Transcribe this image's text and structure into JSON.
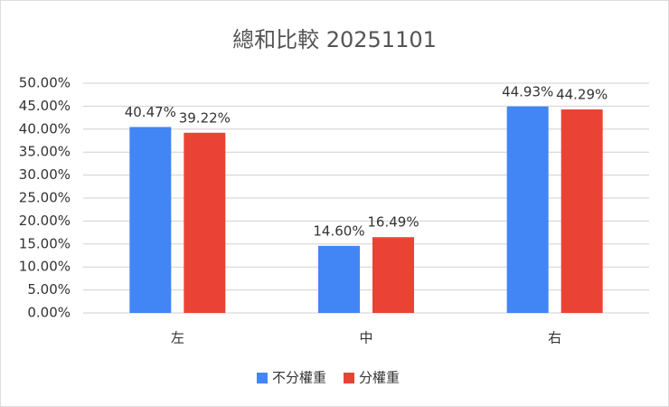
{
  "chart_data": {
    "type": "bar",
    "title": "總和比較 20251101",
    "categories": [
      "左",
      "中",
      "右"
    ],
    "series": [
      {
        "name": "不分權重",
        "color": "#4285f4",
        "values": [
          40.47,
          14.6,
          44.93
        ],
        "value_labels": [
          "40.47%",
          "14.60%",
          "44.93%"
        ]
      },
      {
        "name": "分權重",
        "color": "#ea4335",
        "values": [
          39.22,
          16.49,
          44.29
        ],
        "value_labels": [
          "39.22%",
          "16.49%",
          "44.29%"
        ]
      }
    ],
    "ylim": [
      0,
      50
    ],
    "yticks": [
      {
        "value": 0,
        "label": "0.00%"
      },
      {
        "value": 5,
        "label": "5.00%"
      },
      {
        "value": 10,
        "label": "10.00%"
      },
      {
        "value": 15,
        "label": "15.00%"
      },
      {
        "value": 20,
        "label": "20.00%"
      },
      {
        "value": 25,
        "label": "25.00%"
      },
      {
        "value": 30,
        "label": "30.00%"
      },
      {
        "value": 35,
        "label": "35.00%"
      },
      {
        "value": 40,
        "label": "40.00%"
      },
      {
        "value": 45,
        "label": "45.00%"
      },
      {
        "value": 50,
        "label": "50.00%"
      }
    ],
    "grid": true,
    "legend": "bottom"
  }
}
